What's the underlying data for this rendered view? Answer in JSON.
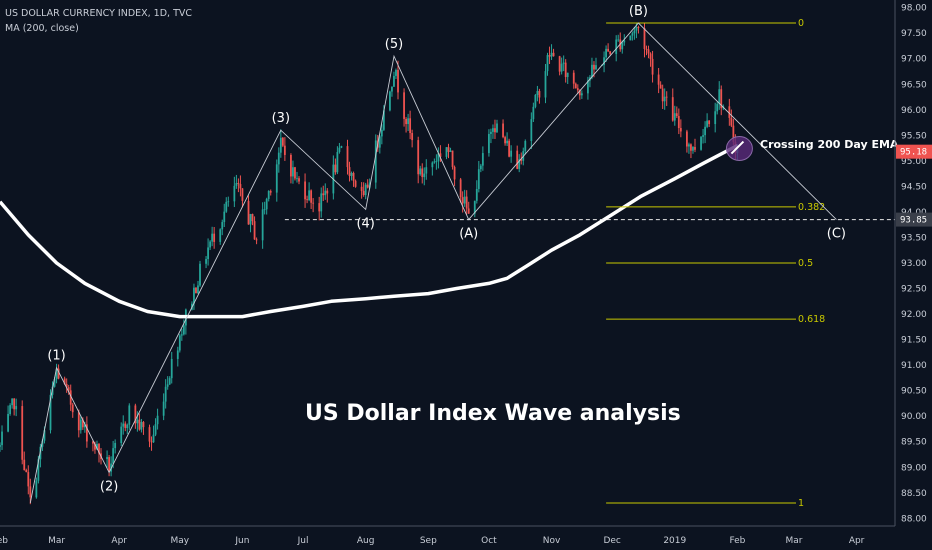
{
  "legend": {
    "symbol_line": "US DOLLAR CURRENCY INDEX, 1D, TVC",
    "indicator_line": "MA (200, close)"
  },
  "colors": {
    "background": "#0c1320",
    "up_candle": "#26a69a",
    "down_candle": "#ef5350",
    "ma_line": "#ffffff",
    "fib_line": "#c8c800",
    "wave_line": "#c8ccd4",
    "circle_fill": "#5a2a7a",
    "price_tag": "#ef5350",
    "level_tag": "#3a3f4a"
  },
  "chart_data": {
    "type": "candlestick",
    "title": "US Dollar Index Wave analysis",
    "xlabel": "",
    "ylabel": "",
    "x_range": [
      "2018-02-01",
      "2019-04-20"
    ],
    "y_range": [
      87.85,
      98.15
    ],
    "y_ticks": [
      "88.00",
      "88.50",
      "89.00",
      "89.50",
      "90.00",
      "90.50",
      "91.00",
      "91.50",
      "92.00",
      "92.50",
      "93.00",
      "93.50",
      "94.00",
      "94.50",
      "95.00",
      "95.50",
      "96.00",
      "96.50",
      "97.00",
      "97.50",
      "98.00"
    ],
    "x_ticks": [
      {
        "label": "Feb",
        "date": "2018-02-01"
      },
      {
        "label": "Mar",
        "date": "2018-03-01"
      },
      {
        "label": "Apr",
        "date": "2018-04-01"
      },
      {
        "label": "May",
        "date": "2018-05-01"
      },
      {
        "label": "Jun",
        "date": "2018-06-01"
      },
      {
        "label": "Jul",
        "date": "2018-07-01"
      },
      {
        "label": "Aug",
        "date": "2018-08-01"
      },
      {
        "label": "Sep",
        "date": "2018-09-01"
      },
      {
        "label": "Oct",
        "date": "2018-10-01"
      },
      {
        "label": "Nov",
        "date": "2018-11-01"
      },
      {
        "label": "Dec",
        "date": "2018-12-01"
      },
      {
        "label": "2019",
        "date": "2019-01-01"
      },
      {
        "label": "Feb",
        "date": "2019-02-01"
      },
      {
        "label": "Mar",
        "date": "2019-03-01"
      },
      {
        "label": "Apr",
        "date": "2019-04-01"
      }
    ],
    "price_path": [
      [
        "2018-02-01",
        89.4
      ],
      [
        "2018-02-08",
        90.3
      ],
      [
        "2018-02-16",
        88.3
      ],
      [
        "2018-03-01",
        90.9
      ],
      [
        "2018-03-12",
        89.9
      ],
      [
        "2018-03-27",
        89.0
      ],
      [
        "2018-04-06",
        90.1
      ],
      [
        "2018-04-17",
        89.5
      ],
      [
        "2018-04-24",
        90.6
      ],
      [
        "2018-05-01",
        91.6
      ],
      [
        "2018-05-15",
        93.3
      ],
      [
        "2018-05-29",
        94.5
      ],
      [
        "2018-06-08",
        93.5
      ],
      [
        "2018-06-20",
        95.3
      ],
      [
        "2018-06-28",
        94.6
      ],
      [
        "2018-07-09",
        94.1
      ],
      [
        "2018-07-20",
        95.2
      ],
      [
        "2018-07-31",
        94.2
      ],
      [
        "2018-08-15",
        96.8
      ],
      [
        "2018-08-28",
        94.7
      ],
      [
        "2018-09-10",
        95.3
      ],
      [
        "2018-09-21",
        93.9
      ],
      [
        "2018-10-03",
        95.8
      ],
      [
        "2018-10-15",
        94.9
      ],
      [
        "2018-10-31",
        97.1
      ],
      [
        "2018-11-15",
        96.4
      ],
      [
        "2018-11-30",
        97.2
      ],
      [
        "2018-12-14",
        97.6
      ],
      [
        "2018-12-28",
        96.1
      ],
      [
        "2019-01-10",
        95.2
      ],
      [
        "2019-01-23",
        96.3
      ],
      [
        "2019-02-01",
        95.2
      ]
    ],
    "moving_average": {
      "name": "MA (200, close)",
      "values": [
        [
          "2018-02-01",
          94.2
        ],
        [
          "2018-02-15",
          93.55
        ],
        [
          "2018-03-01",
          93.0
        ],
        [
          "2018-03-15",
          92.6
        ],
        [
          "2018-04-01",
          92.25
        ],
        [
          "2018-04-15",
          92.05
        ],
        [
          "2018-05-01",
          91.95
        ],
        [
          "2018-05-15",
          91.95
        ],
        [
          "2018-06-01",
          91.95
        ],
        [
          "2018-06-15",
          92.05
        ],
        [
          "2018-07-01",
          92.15
        ],
        [
          "2018-07-15",
          92.25
        ],
        [
          "2018-08-01",
          92.3
        ],
        [
          "2018-08-15",
          92.35
        ],
        [
          "2018-09-01",
          92.4
        ],
        [
          "2018-09-15",
          92.5
        ],
        [
          "2018-10-01",
          92.6
        ],
        [
          "2018-10-10",
          92.7
        ],
        [
          "2018-10-20",
          92.95
        ],
        [
          "2018-11-01",
          93.25
        ],
        [
          "2018-11-15",
          93.55
        ],
        [
          "2018-12-01",
          93.95
        ],
        [
          "2018-12-15",
          94.3
        ],
        [
          "2019-01-01",
          94.65
        ],
        [
          "2019-01-15",
          94.95
        ],
        [
          "2019-02-01",
          95.3
        ]
      ]
    },
    "wave_points": [
      {
        "label": "(1)",
        "date": "2018-03-01",
        "value": 90.95,
        "label_pos": "above"
      },
      {
        "label": "(2)",
        "date": "2018-03-27",
        "value": 88.9,
        "label_pos": "below"
      },
      {
        "label": "(3)",
        "date": "2018-06-20",
        "value": 95.6,
        "label_pos": "above"
      },
      {
        "label": "(4)",
        "date": "2018-08-01",
        "value": 94.05,
        "label_pos": "below"
      },
      {
        "label": "(5)",
        "date": "2018-08-15",
        "value": 97.05,
        "label_pos": "above"
      },
      {
        "label": "(A)",
        "date": "2018-09-21",
        "value": 93.85,
        "label_pos": "below"
      },
      {
        "label": "(B)",
        "date": "2018-12-14",
        "value": 97.7,
        "label_pos": "above"
      },
      {
        "label": "(C)",
        "date": "2019-03-22",
        "value": 93.85,
        "label_pos": "below"
      }
    ],
    "wave_path_dates": [
      [
        "2018-02-16",
        88.3
      ],
      [
        "2018-03-01",
        90.95
      ],
      [
        "2018-03-27",
        88.9
      ],
      [
        "2018-06-20",
        95.6
      ],
      [
        "2018-08-01",
        94.05
      ],
      [
        "2018-08-15",
        97.05
      ],
      [
        "2018-09-21",
        93.85
      ],
      [
        "2018-12-14",
        97.7
      ],
      [
        "2019-03-22",
        93.85
      ]
    ],
    "support_line": {
      "value": 93.85,
      "start": "2018-06-22",
      "end": "2019-04-20"
    },
    "fibonacci": [
      {
        "label": "0",
        "value": 97.7
      },
      {
        "label": "0.382",
        "value": 94.1
      },
      {
        "label": "0.5",
        "value": 93.0
      },
      {
        "label": "0.618",
        "value": 91.9
      },
      {
        "label": "1",
        "value": 88.3
      }
    ],
    "fib_range_dates": [
      "2018-11-28",
      "2019-03-02"
    ],
    "annotation": {
      "text": "Crossing 200 Day EMA",
      "date": "2019-02-01",
      "value": 95.3
    },
    "price_tags": {
      "last": "95.18",
      "level": "93.85"
    }
  }
}
